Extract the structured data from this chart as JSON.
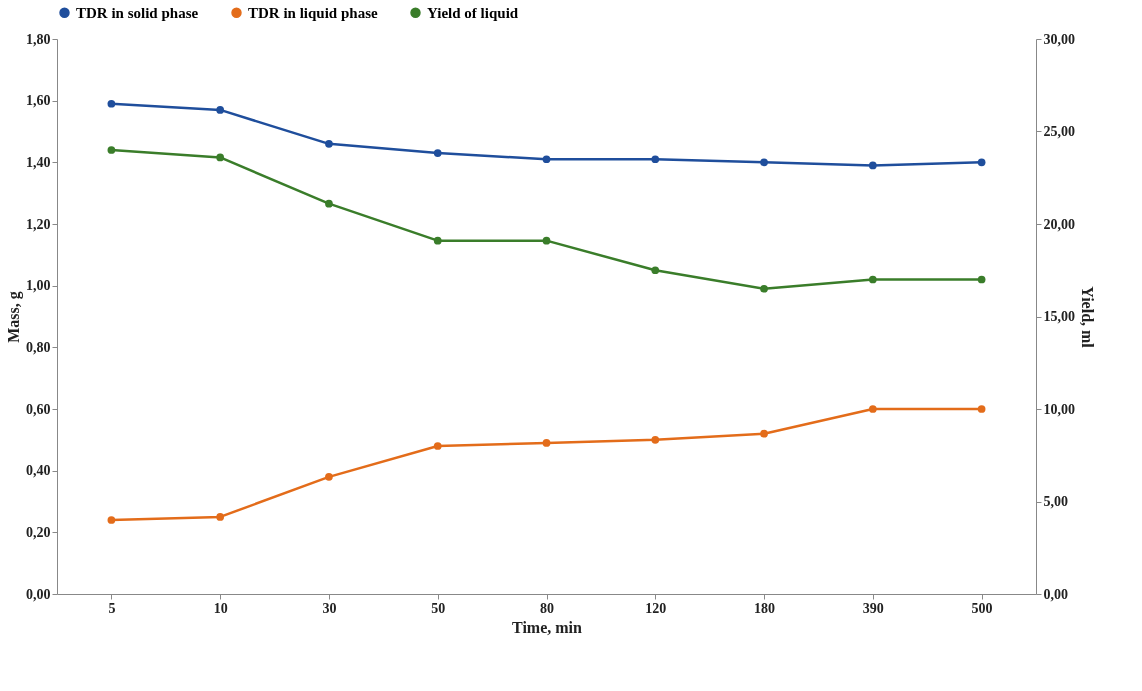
{
  "chart_data": {
    "type": "line",
    "xlabel": "Time, min",
    "ylabel": "Mass, g",
    "y2label": "Yield, ml",
    "categories": [
      "5",
      "10",
      "30",
      "50",
      "80",
      "120",
      "180",
      "390",
      "500"
    ],
    "series": [
      {
        "name": "TDR in solid phase",
        "color": "#1f4e9c",
        "values": [
          1.59,
          1.57,
          1.46,
          1.43,
          1.41,
          1.41,
          1.4,
          1.39,
          1.4
        ]
      },
      {
        "name": "TDR in liquid phase",
        "color": "#e36c1a",
        "values": [
          0.24,
          0.25,
          0.38,
          0.48,
          0.49,
          0.5,
          0.52,
          0.6,
          0.6
        ]
      },
      {
        "name": "Yield of liquid",
        "color": "#3a7d2a",
        "axis": "y2",
        "values": [
          24.0,
          23.6,
          21.1,
          19.1,
          19.1,
          17.5,
          16.5,
          17.0,
          17.0
        ]
      }
    ],
    "ylim": [
      0,
      1.8
    ],
    "yticks": [
      {
        "value": 0,
        "label": "0,00"
      },
      {
        "value": 0.2,
        "label": "0,20"
      },
      {
        "value": 0.4,
        "label": "0,40"
      },
      {
        "value": 0.6,
        "label": "0,60"
      },
      {
        "value": 0.8,
        "label": "0,80"
      },
      {
        "value": 1.0,
        "label": "1,00"
      },
      {
        "value": 1.2,
        "label": "1,20"
      },
      {
        "value": 1.4,
        "label": "1,40"
      },
      {
        "value": 1.6,
        "label": "1,60"
      },
      {
        "value": 1.8,
        "label": "1,80"
      }
    ],
    "y2lim": [
      0,
      30
    ],
    "y2ticks": [
      {
        "value": 0,
        "label": "0,00"
      },
      {
        "value": 5,
        "label": "5,00"
      },
      {
        "value": 10,
        "label": "10,00"
      },
      {
        "value": 15,
        "label": "15,00"
      },
      {
        "value": 20,
        "label": "20,00"
      },
      {
        "value": 25,
        "label": "25,00"
      },
      {
        "value": 30,
        "label": "30,00"
      }
    ],
    "legend": "top",
    "marker": "circle",
    "line_style": "solid",
    "grid": false
  }
}
